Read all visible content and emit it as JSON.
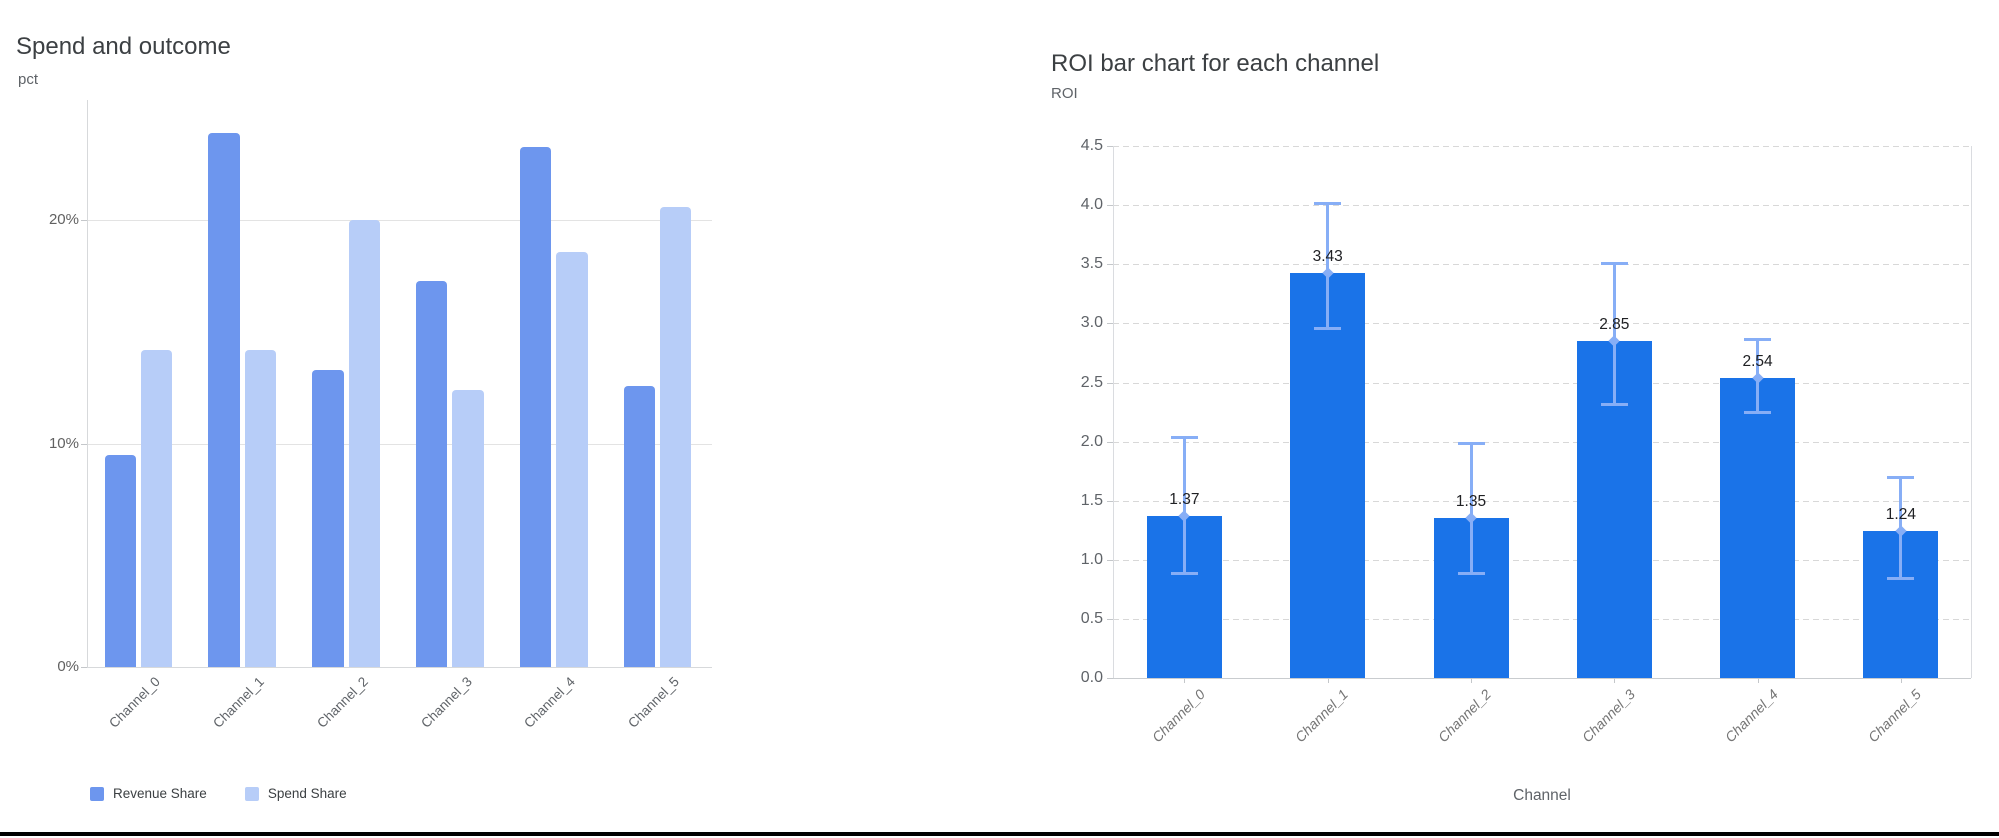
{
  "page": {
    "background": "#ffffff",
    "bottom_border_color": "#000000"
  },
  "chart_data": [
    {
      "type": "bar",
      "title": "Spend and outcome",
      "ylabel": "pct",
      "xlabel": "",
      "categories": [
        "Channel_0",
        "Channel_1",
        "Channel_2",
        "Channel_3",
        "Channel_4",
        "Channel_5"
      ],
      "series": [
        {
          "name": "Revenue Share",
          "color": "#6D96EE",
          "values": [
            9.5,
            23.9,
            13.3,
            17.3,
            23.3,
            12.6
          ]
        },
        {
          "name": "Spend Share",
          "color": "#B7CDF8",
          "values": [
            14.2,
            14.2,
            20.0,
            12.4,
            18.6,
            20.6
          ]
        }
      ],
      "y_ticks": [
        {
          "label": "0%",
          "value": 0
        },
        {
          "label": "10%",
          "value": 10
        },
        {
          "label": "20%",
          "value": 20
        }
      ],
      "ylim": [
        0,
        25.4
      ],
      "grid": "solid-horizontal",
      "legend_position": "bottom"
    },
    {
      "type": "bar",
      "title": "ROI bar chart for each channel",
      "ylabel": "ROI",
      "xlabel": "Channel",
      "categories": [
        "Channel_0",
        "Channel_1",
        "Channel_2",
        "Channel_3",
        "Channel_4",
        "Channel_5"
      ],
      "values": [
        1.37,
        3.43,
        1.35,
        2.85,
        2.54,
        1.24
      ],
      "value_labels": [
        "1.37",
        "3.43",
        "1.35",
        "2.85",
        "2.54",
        "1.24"
      ],
      "error_low": [
        0.88,
        2.95,
        0.88,
        2.31,
        2.24,
        0.84
      ],
      "error_high": [
        2.04,
        4.02,
        1.99,
        3.51,
        2.87,
        1.7
      ],
      "bar_color": "#1A73E8",
      "error_color": "#87AEF6",
      "y_ticks": [
        "0.0",
        "0.5",
        "1.0",
        "1.5",
        "2.0",
        "2.5",
        "3.0",
        "3.5",
        "4.0",
        "4.5"
      ],
      "ylim": [
        0,
        4.5
      ],
      "grid": "dashed-horizontal",
      "legend_position": "none"
    }
  ]
}
